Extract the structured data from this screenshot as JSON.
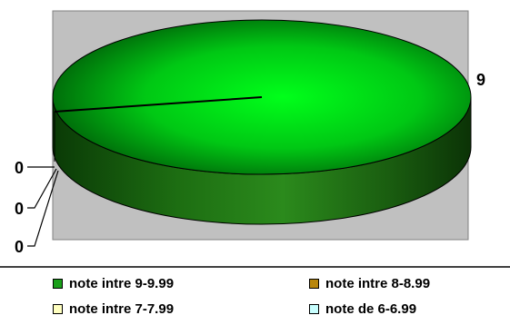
{
  "chart_data": {
    "type": "pie",
    "categories": [
      "note intre 9-9.99",
      "note intre 8-8.99",
      "note intre 7-7.99",
      "note de 6-6.99"
    ],
    "values": [
      9,
      0,
      0,
      0
    ],
    "data_labels": [
      "9",
      "0",
      "0",
      "0"
    ],
    "colors": [
      "#1aa01a",
      "#b8860b",
      "#ffffc0",
      "#c8ffff"
    ],
    "plot_background": "#c0c0c0",
    "legend_placement": "bottom",
    "three_d": true
  }
}
